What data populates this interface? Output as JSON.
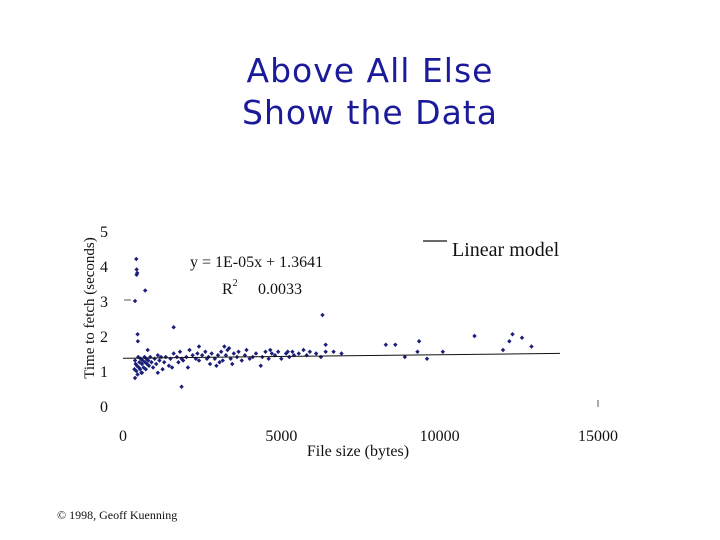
{
  "slide": {
    "title_line1": "Above All Else",
    "title_line2": "Show the Data",
    "copyright": "© 1998, Geoff Kuenning"
  },
  "chart_data": {
    "type": "scatter",
    "title": "",
    "xlabel": "File size (bytes)",
    "ylabel": "Time to fetch (seconds)",
    "xlim": [
      0,
      15000
    ],
    "ylim": [
      0,
      5
    ],
    "x_ticks": [
      "0",
      "5000",
      "10000",
      "15000"
    ],
    "y_ticks": [
      "0",
      "1",
      "2",
      "3",
      "4",
      "5"
    ],
    "grid": false,
    "legend": {
      "label": "Linear model",
      "placement": "top-right"
    },
    "annotation": {
      "equation": "y = 1E-05x + 1.3641",
      "r2_label": "R",
      "r2_sup": "2",
      "r2_value": "0.0033"
    },
    "trendline": {
      "slope": 1e-05,
      "intercept": 1.3641
    },
    "marker_color": "#1c1f7a",
    "points": [
      [
        420,
        4.2
      ],
      [
        430,
        3.9
      ],
      [
        450,
        3.8
      ],
      [
        430,
        3.75
      ],
      [
        700,
        3.3
      ],
      [
        360,
        1.05
      ],
      [
        380,
        0.8
      ],
      [
        380,
        1.3
      ],
      [
        400,
        1.2
      ],
      [
        420,
        1.0
      ],
      [
        440,
        1.15
      ],
      [
        460,
        0.9
      ],
      [
        480,
        1.4
      ],
      [
        500,
        1.1
      ],
      [
        520,
        1.25
      ],
      [
        540,
        1.05
      ],
      [
        560,
        1.35
      ],
      [
        580,
        0.95
      ],
      [
        600,
        1.2
      ],
      [
        620,
        1.3
      ],
      [
        650,
        1.1
      ],
      [
        680,
        1.4
      ],
      [
        700,
        1.25
      ],
      [
        720,
        1.05
      ],
      [
        740,
        1.35
      ],
      [
        760,
        1.2
      ],
      [
        800,
        1.3
      ],
      [
        820,
        1.15
      ],
      [
        860,
        1.4
      ],
      [
        900,
        1.25
      ],
      [
        950,
        1.1
      ],
      [
        1000,
        1.35
      ],
      [
        1050,
        1.2
      ],
      [
        1100,
        1.45
      ],
      [
        1150,
        1.3
      ],
      [
        1200,
        1.4
      ],
      [
        1300,
        1.25
      ],
      [
        1350,
        1.4
      ],
      [
        1450,
        1.15
      ],
      [
        1500,
        1.35
      ],
      [
        1600,
        1.5
      ],
      [
        1700,
        1.4
      ],
      [
        1750,
        1.25
      ],
      [
        1800,
        1.55
      ],
      [
        1850,
        1.35
      ],
      [
        1900,
        1.3
      ],
      [
        2000,
        1.4
      ],
      [
        2050,
        1.1
      ],
      [
        2100,
        1.6
      ],
      [
        2200,
        1.45
      ],
      [
        2300,
        1.35
      ],
      [
        2350,
        1.5
      ],
      [
        2400,
        1.3
      ],
      [
        2500,
        1.45
      ],
      [
        2600,
        1.55
      ],
      [
        2650,
        1.35
      ],
      [
        2700,
        1.4
      ],
      [
        2750,
        1.2
      ],
      [
        2800,
        1.5
      ],
      [
        2900,
        1.35
      ],
      [
        3000,
        1.45
      ],
      [
        3050,
        1.25
      ],
      [
        3100,
        1.55
      ],
      [
        3150,
        1.3
      ],
      [
        3250,
        1.45
      ],
      [
        3300,
        1.6
      ],
      [
        3400,
        1.35
      ],
      [
        3450,
        1.2
      ],
      [
        3500,
        1.5
      ],
      [
        3600,
        1.4
      ],
      [
        3650,
        1.55
      ],
      [
        3750,
        1.3
      ],
      [
        3850,
        1.45
      ],
      [
        3900,
        1.6
      ],
      [
        4000,
        1.35
      ],
      [
        4200,
        1.5
      ],
      [
        4350,
        1.15
      ],
      [
        4400,
        1.4
      ],
      [
        4500,
        1.55
      ],
      [
        4600,
        1.35
      ],
      [
        4700,
        1.5
      ],
      [
        4800,
        1.45
      ],
      [
        4900,
        1.55
      ],
      [
        5000,
        1.35
      ],
      [
        5150,
        1.5
      ],
      [
        5250,
        1.4
      ],
      [
        5350,
        1.55
      ],
      [
        5400,
        1.45
      ],
      [
        5550,
        1.5
      ],
      [
        5700,
        1.6
      ],
      [
        5800,
        1.45
      ],
      [
        5900,
        1.55
      ],
      [
        6100,
        1.5
      ],
      [
        6250,
        1.4
      ],
      [
        6400,
        1.55
      ],
      [
        1600,
        2.25
      ],
      [
        1850,
        0.55
      ],
      [
        2400,
        1.7
      ],
      [
        3200,
        1.7
      ],
      [
        5200,
        1.55
      ],
      [
        6300,
        2.6
      ],
      [
        6400,
        1.75
      ],
      [
        6650,
        1.55
      ],
      [
        6900,
        1.5
      ],
      [
        8300,
        1.75
      ],
      [
        8600,
        1.75
      ],
      [
        8900,
        1.4
      ],
      [
        9300,
        1.55
      ],
      [
        9350,
        1.85
      ],
      [
        9600,
        1.35
      ],
      [
        10100,
        1.55
      ],
      [
        11100,
        2.0
      ],
      [
        12000,
        1.6
      ],
      [
        12200,
        1.85
      ],
      [
        12300,
        2.05
      ],
      [
        12600,
        1.95
      ],
      [
        12900,
        1.7
      ],
      [
        460,
        2.05
      ],
      [
        470,
        1.85
      ],
      [
        1250,
        1.05
      ],
      [
        1550,
        1.1
      ],
      [
        2950,
        1.15
      ],
      [
        600,
        0.95
      ],
      [
        780,
        1.6
      ],
      [
        1100,
        0.95
      ],
      [
        3350,
        1.65
      ],
      [
        4100,
        1.4
      ],
      [
        4650,
        1.6
      ],
      [
        380,
        3.0
      ]
    ]
  }
}
